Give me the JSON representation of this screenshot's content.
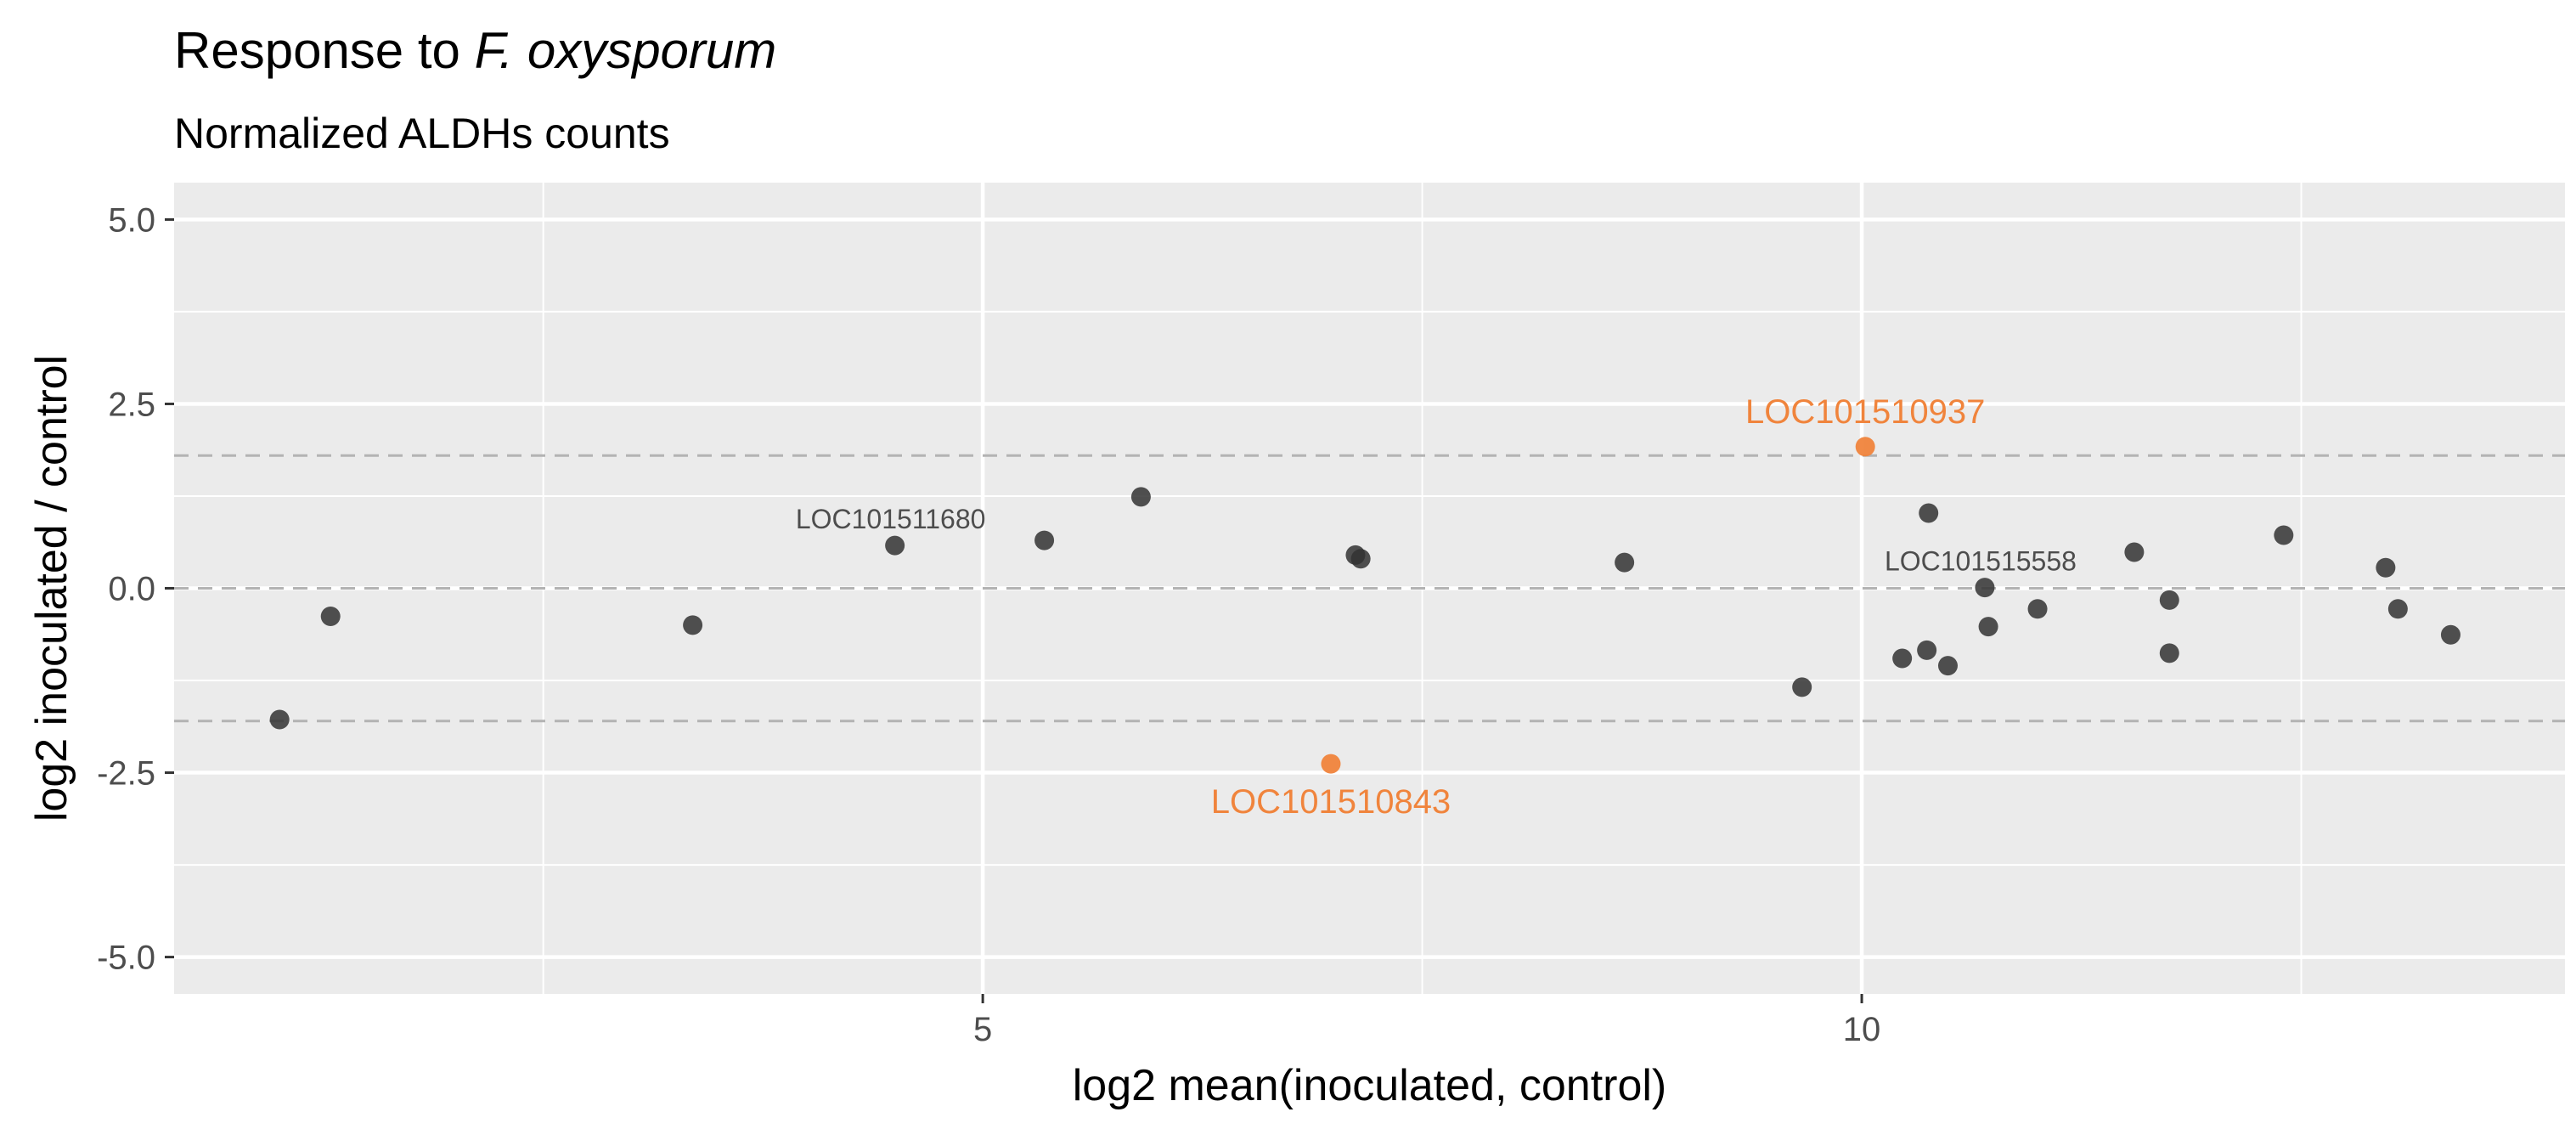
{
  "chart_data": {
    "type": "scatter",
    "title_prefix": "Response to ",
    "title_italic": "F. oxysporum",
    "subtitle": "Normalized ALDHs counts",
    "xlabel": "log2 mean(inoculated, control)",
    "ylabel": "log2 inoculated / control",
    "xlim": [
      0.4,
      14.0
    ],
    "ylim": [
      -5.5,
      5.5
    ],
    "x_ticks": [
      5,
      10
    ],
    "x_tick_labels": [
      "5",
      "10"
    ],
    "y_ticks": [
      -5.0,
      -2.5,
      0.0,
      2.5,
      5.0
    ],
    "y_tick_labels": [
      "-5.0",
      "-2.5",
      "0.0",
      "2.5",
      "5.0"
    ],
    "reference_lines_y": [
      1.8,
      0.0,
      -1.8
    ],
    "grid": true,
    "colors": {
      "panel": "#ebebeb",
      "grid": "#ffffff",
      "point": "#333333",
      "highlight": "#f0843c",
      "dashed": "#b3b3b3",
      "tick_text": "#4d4d4d"
    },
    "points": [
      {
        "x": 1.0,
        "y": -1.78
      },
      {
        "x": 1.29,
        "y": -0.38
      },
      {
        "x": 3.35,
        "y": -0.5
      },
      {
        "x": 4.5,
        "y": 0.58
      },
      {
        "x": 5.35,
        "y": 0.65
      },
      {
        "x": 5.9,
        "y": 1.24
      },
      {
        "x": 7.12,
        "y": 0.45
      },
      {
        "x": 7.15,
        "y": 0.4
      },
      {
        "x": 8.65,
        "y": 0.35
      },
      {
        "x": 9.66,
        "y": -1.34
      },
      {
        "x": 10.23,
        "y": -0.95
      },
      {
        "x": 10.37,
        "y": -0.84
      },
      {
        "x": 10.38,
        "y": 1.02
      },
      {
        "x": 10.49,
        "y": -1.05
      },
      {
        "x": 10.7,
        "y": 0.01
      },
      {
        "x": 10.72,
        "y": -0.52
      },
      {
        "x": 11.0,
        "y": -0.28
      },
      {
        "x": 11.55,
        "y": 0.49
      },
      {
        "x": 11.75,
        "y": -0.16
      },
      {
        "x": 11.75,
        "y": -0.88
      },
      {
        "x": 12.4,
        "y": 0.72
      },
      {
        "x": 12.98,
        "y": 0.28
      },
      {
        "x": 13.05,
        "y": -0.28
      },
      {
        "x": 13.35,
        "y": -0.63
      }
    ],
    "highlighted_points": [
      {
        "x": 10.02,
        "y": 1.92,
        "label": "LOC101510937"
      },
      {
        "x": 6.98,
        "y": -2.38,
        "label": "LOC101510843"
      }
    ],
    "annotations": [
      {
        "x": 4.5,
        "y": 0.58,
        "label": "LOC101511680"
      },
      {
        "x": 10.7,
        "y": 0.01,
        "label": "LOC101515558"
      }
    ]
  }
}
